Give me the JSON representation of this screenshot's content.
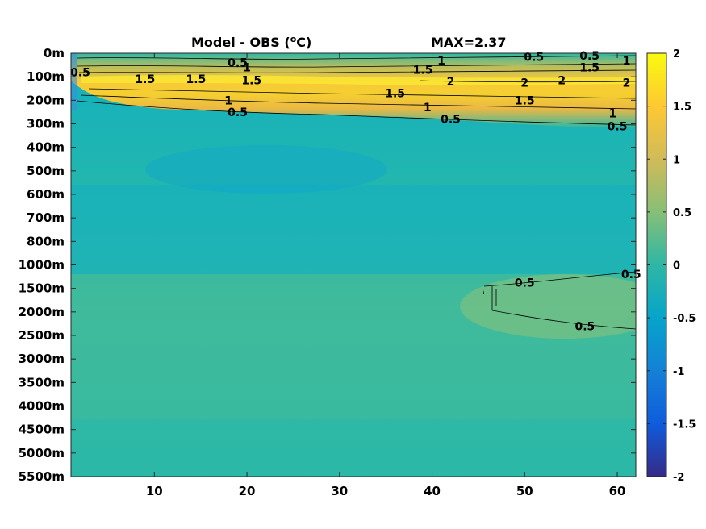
{
  "chart_data": {
    "type": "heatmap",
    "title": "Model - OBS (",
    "title_unit": "C)",
    "title_degree": "o",
    "max_label": "MAX=2.37",
    "max_value": 2.37,
    "y_ticks": [
      "0m",
      "100m",
      "200m",
      "300m",
      "400m",
      "500m",
      "600m",
      "700m",
      "800m",
      "1000m",
      "1500m",
      "2000m",
      "2500m",
      "3000m",
      "3500m",
      "4000m",
      "4500m",
      "5000m",
      "5500m"
    ],
    "x_ticks": [
      10,
      20,
      30,
      40,
      50,
      60
    ],
    "xlim": [
      1,
      62
    ],
    "colorbar": {
      "min": -2,
      "max": 2,
      "ticks": [
        2,
        1.5,
        1,
        0.5,
        0,
        -0.5,
        -1,
        -1.5,
        -2
      ],
      "tick_labels": [
        "2",
        "1.5",
        "1",
        "0.5",
        "0",
        "-0.5",
        "-1",
        "-1.5",
        "-2"
      ],
      "colormap": "parula",
      "stops": [
        "#352a87",
        "#0f5cdd",
        "#1481d6",
        "#06a4ca",
        "#2eb7a4",
        "#87bf77",
        "#d1bb59",
        "#fec832",
        "#f9fb0e"
      ]
    },
    "contour_labels": [
      {
        "text": "0.5",
        "x": 2,
        "y": 0.8
      },
      {
        "text": "0.5",
        "x": 19,
        "y": 0.4
      },
      {
        "text": "1",
        "x": 20,
        "y": 0.6
      },
      {
        "text": "1.5",
        "x": 9,
        "y": 1.1
      },
      {
        "text": "1.5",
        "x": 14.5,
        "y": 1.1
      },
      {
        "text": "1.5",
        "x": 20.5,
        "y": 1.15
      },
      {
        "text": "1",
        "x": 18,
        "y": 2.0
      },
      {
        "text": "0.5",
        "x": 19,
        "y": 2.5
      },
      {
        "text": "1",
        "x": 41,
        "y": 0.3
      },
      {
        "text": "1.5",
        "x": 39,
        "y": 0.7
      },
      {
        "text": "2",
        "x": 42,
        "y": 1.2
      },
      {
        "text": "1.5",
        "x": 36,
        "y": 1.7
      },
      {
        "text": "1",
        "x": 39.5,
        "y": 2.3
      },
      {
        "text": "0.5",
        "x": 42,
        "y": 2.8
      },
      {
        "text": "0.5",
        "x": 51,
        "y": 0.15
      },
      {
        "text": "0.5",
        "x": 57,
        "y": 0.1
      },
      {
        "text": "1",
        "x": 61,
        "y": 0.3
      },
      {
        "text": "1.5",
        "x": 57,
        "y": 0.6
      },
      {
        "text": "2",
        "x": 50,
        "y": 1.25
      },
      {
        "text": "2",
        "x": 54,
        "y": 1.15
      },
      {
        "text": "2",
        "x": 61,
        "y": 1.25
      },
      {
        "text": "1.5",
        "x": 50,
        "y": 2.0
      },
      {
        "text": "1",
        "x": 59.5,
        "y": 2.55
      },
      {
        "text": "0.5",
        "x": 60,
        "y": 3.1
      },
      {
        "text": "0.5",
        "x": 50,
        "y": 9.75
      },
      {
        "text": "0.5",
        "x": 61.5,
        "y": 9.4
      },
      {
        "text": "0.5",
        "x": 56.5,
        "y": 11.6
      }
    ]
  }
}
